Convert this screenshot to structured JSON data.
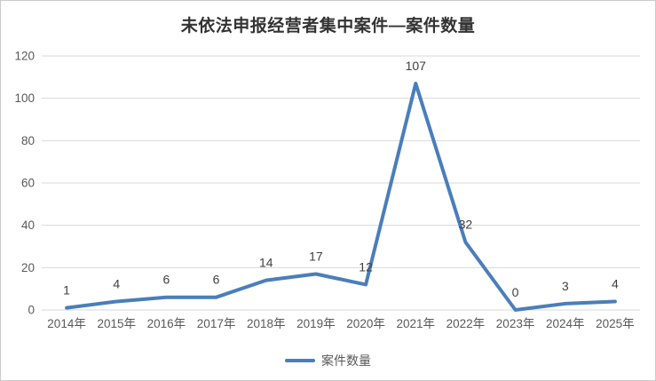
{
  "title": "未依法申报经营者集中案件—案件数量",
  "legend": {
    "label": "案件数量"
  },
  "colors": {
    "line": "#4A7EBB",
    "grid": "#D9D9D9",
    "tick_text": "#595959",
    "data_label": "#404040",
    "title_text": "#333333",
    "border": "#CCCCCC"
  },
  "chart_data": {
    "type": "line",
    "categories": [
      "2014年",
      "2015年",
      "2016年",
      "2017年",
      "2018年",
      "2019年",
      "2020年",
      "2021年",
      "2022年",
      "2023年",
      "2024年",
      "2025年"
    ],
    "series": [
      {
        "name": "案件数量",
        "values": [
          1,
          4,
          6,
          6,
          14,
          17,
          12,
          107,
          32,
          0,
          3,
          4
        ]
      }
    ],
    "title": "未依法申报经营者集中案件—案件数量",
    "xlabel": "",
    "ylabel": "",
    "ylim": [
      0,
      120
    ],
    "yticks": [
      0,
      20,
      40,
      60,
      80,
      100,
      120
    ],
    "grid": true,
    "data_labels": true,
    "legend_position": "bottom"
  }
}
